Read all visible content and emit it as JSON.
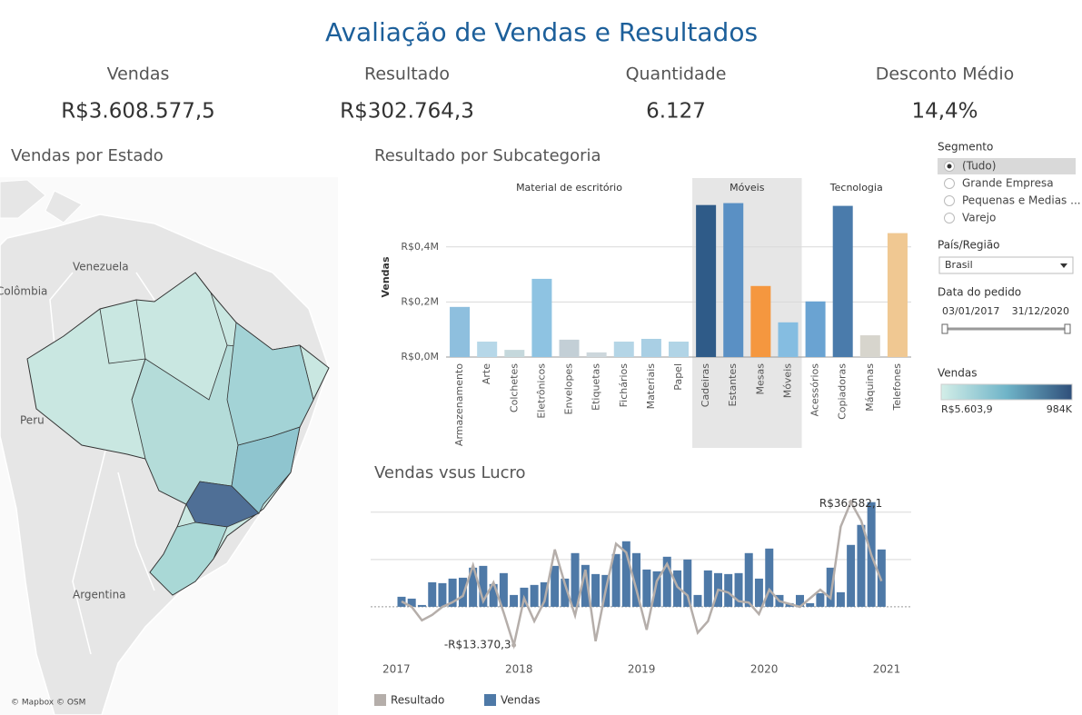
{
  "header": {
    "title": "Avaliação de Vendas e Resultados"
  },
  "kpis": [
    {
      "label": "Vendas",
      "value": "R$3.608.577,5"
    },
    {
      "label": "Resultado",
      "value": "R$302.764,3"
    },
    {
      "label": "Quantidade",
      "value": "6.127"
    },
    {
      "label": "Desconto Médio",
      "value": "14,4%"
    }
  ],
  "map": {
    "title": "Vendas por Estado",
    "labels": [
      "Venezuela",
      "Colômbia",
      "Peru",
      "Argentina"
    ],
    "credit": "© Mapbox © OSM"
  },
  "chart_data": [
    {
      "type": "bar",
      "title": "Resultado por Subcategoria",
      "y_label": "Vendas",
      "groups": [
        {
          "name": "Material de escritório",
          "categories": [
            "Armazenamento",
            "Arte",
            "Colchetes",
            "Eletrônicos",
            "Envelopes",
            "Etiquetas",
            "Fichários",
            "Materiais",
            "Papel"
          ],
          "values": [
            182000,
            56000,
            26000,
            284000,
            63000,
            17000,
            56000,
            66000,
            56000
          ],
          "colors": [
            "#8ebfde",
            "#b6d7e8",
            "#c5d8dc",
            "#8ec3e2",
            "#c3cfd6",
            "#cdd7dc",
            "#b4d5e6",
            "#a9cfe4",
            "#b1d4e6"
          ]
        },
        {
          "name": "Móveis",
          "categories": [
            "Cadeiras",
            "Estantes",
            "Mesas",
            "Móveis"
          ],
          "values": [
            552000,
            559000,
            258000,
            126000
          ],
          "colors": [
            "#2f5b88",
            "#5a90c4",
            "#f5973f",
            "#85bde1"
          ]
        },
        {
          "name": "Tecnologia",
          "categories": [
            "Acessórios",
            "Copiadoras",
            "Máquinas",
            "Telefones"
          ],
          "values": [
            202000,
            549000,
            79000,
            450000
          ],
          "colors": [
            "#6aa3d2",
            "#4a7bab",
            "#d7d5cd",
            "#f0c892"
          ]
        }
      ],
      "shaded_group": 1,
      "ylim": [
        0,
        640000
      ],
      "yticks": [
        {
          "value": 0,
          "label": "R$0,0M"
        },
        {
          "value": 200000,
          "label": "R$0,2M"
        },
        {
          "value": 400000,
          "label": "R$0,4M"
        }
      ],
      "grid": true
    },
    {
      "type": "bar-line",
      "title": "Vendas vsus Lucro",
      "x": [
        2017.042,
        2017.125,
        2017.208,
        2017.292,
        2017.375,
        2017.458,
        2017.542,
        2017.625,
        2017.708,
        2017.792,
        2017.875,
        2017.958,
        2018.042,
        2018.125,
        2018.208,
        2018.292,
        2018.375,
        2018.458,
        2018.542,
        2018.625,
        2018.708,
        2018.792,
        2018.875,
        2018.958,
        2019.042,
        2019.125,
        2019.208,
        2019.292,
        2019.375,
        2019.458,
        2019.542,
        2019.625,
        2019.708,
        2019.792,
        2019.875,
        2019.958,
        2020.042,
        2020.125,
        2020.208,
        2020.292,
        2020.375,
        2020.458,
        2020.542,
        2020.625,
        2020.708,
        2020.792,
        2020.875,
        2020.958
      ],
      "xlim": [
        2016.79,
        2021.2
      ],
      "xticks": [
        2017,
        2018,
        2019,
        2020,
        2021
      ],
      "ylim": [
        -100000,
        236000
      ],
      "y2lim": [
        -16500,
        39000
      ],
      "grid": true,
      "ygrid": [
        100000,
        200000
      ],
      "series": [
        {
          "name": "Resultado",
          "color": "#b5aeaa",
          "kind": "line",
          "axis": "y2",
          "values": [
            1900,
            0,
            -4700,
            -2800,
            0,
            1600,
            3800,
            14500,
            2000,
            8500,
            -2000,
            -13370.3,
            3000,
            -5000,
            2000,
            20000,
            8000,
            -3000,
            13000,
            -12000,
            6000,
            22000,
            19000,
            6000,
            -8000,
            9000,
            15000,
            7000,
            4000,
            -9000,
            -5000,
            6000,
            5000,
            2000,
            1500,
            -2500,
            6000,
            2000,
            1000,
            0,
            3000,
            6000,
            3000,
            28000,
            36582.1,
            30000,
            18000,
            9000
          ],
          "value_labels": [
            null,
            null,
            null,
            null,
            null,
            null,
            null,
            null,
            null,
            null,
            null,
            "-R$13.370,3",
            null,
            null,
            null,
            null,
            null,
            null,
            null,
            null,
            null,
            null,
            null,
            null,
            null,
            null,
            null,
            null,
            null,
            null,
            null,
            null,
            null,
            null,
            null,
            null,
            null,
            null,
            null,
            null,
            null,
            null,
            null,
            null,
            "R$36.582,1",
            null,
            null,
            null
          ]
        },
        {
          "name": "Vendas",
          "color": "#4e79a7",
          "kind": "bar",
          "values": [
            21200,
            17300,
            3800,
            51900,
            50000,
            59600,
            61500,
            82700,
            86500,
            48100,
            71200,
            25000,
            40400,
            46200,
            51900,
            86500,
            59600,
            113500,
            88500,
            69200,
            67300,
            111500,
            138500,
            113500,
            78800,
            75000,
            105800,
            76900,
            100000,
            25000,
            76900,
            71200,
            69200,
            71200,
            113500,
            59600,
            123100,
            25000,
            7700,
            25000,
            7700,
            28800,
            82700,
            30800,
            130800,
            173100,
            221200,
            121200
          ]
        }
      ]
    }
  ],
  "filters": {
    "segment": {
      "title": "Segmento",
      "options": [
        "(Tudo)",
        "Grande Empresa",
        "Pequenas e Medias ...",
        "Varejo"
      ],
      "selected": 0
    },
    "region": {
      "title": "País/Região",
      "value": "Brasil"
    },
    "date": {
      "title": "Data do pedido",
      "start": "03/01/2017",
      "end": "31/12/2020"
    },
    "color_legend": {
      "title": "Vendas",
      "range": [
        {
          "value": 5603.9,
          "label": "R$5.603,9"
        },
        {
          "value": 984000,
          "label": "984K"
        }
      ]
    }
  }
}
